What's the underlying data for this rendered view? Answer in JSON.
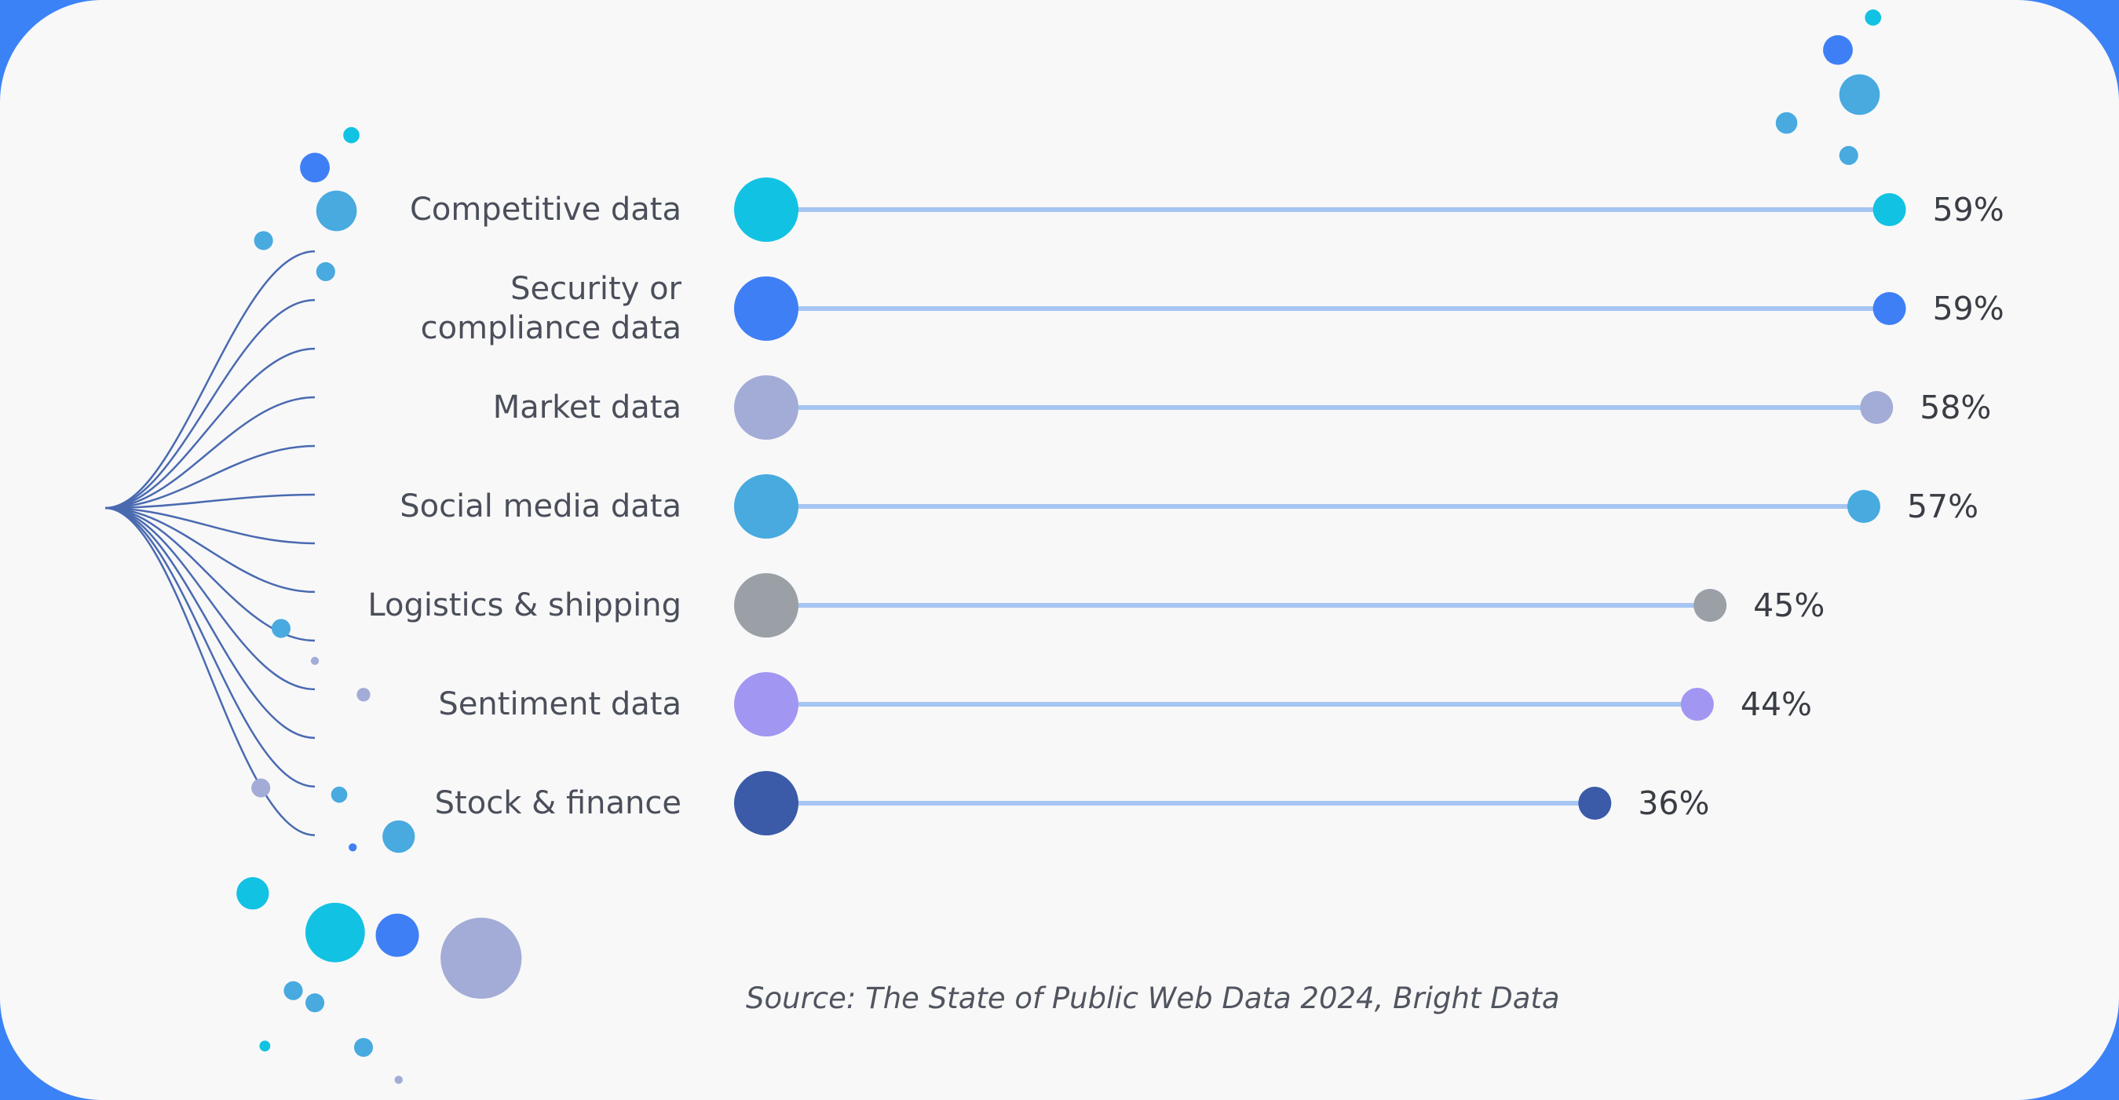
{
  "chart_data": {
    "type": "lollipop",
    "categories": [
      "Competitive data",
      "Security or compliance data",
      "Market data",
      "Social media data",
      "Logistics & shipping",
      "Sentiment data",
      "Stock & finance"
    ],
    "values": [
      59,
      59,
      58,
      57,
      45,
      44,
      36
    ],
    "value_labels": [
      "59%",
      "59%",
      "58%",
      "57%",
      "45%",
      "44%",
      "36%"
    ],
    "colors": [
      "#12c2e2",
      "#3f7ff5",
      "#a3acd6",
      "#48aadf",
      "#9aa0a6",
      "#a197f2",
      "#3b5ba8"
    ],
    "line_color": "#a6c5f2",
    "source": "Source: The State of Public Web Data 2024, Bright Data"
  }
}
